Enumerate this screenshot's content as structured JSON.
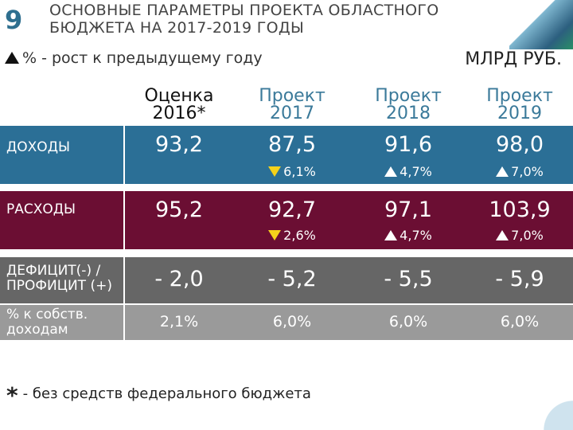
{
  "slide_number": "9",
  "title_line1": "ОСНОВНЫЕ ПАРАМЕТРЫ ПРОЕКТА ОБЛАСТНОГО",
  "title_line2": "БЮДЖЕТА НА 2017-2019 ГОДЫ",
  "legend_text": "% - рост к предыдущему году",
  "units": "МЛРД РУБ.",
  "columns": [
    {
      "line1": "Оценка",
      "line2": "2016*"
    },
    {
      "line1": "Проект",
      "line2": "2017"
    },
    {
      "line1": "Проект",
      "line2": "2018"
    },
    {
      "line1": "Проект",
      "line2": "2019"
    }
  ],
  "rows": {
    "income": {
      "label": "ДОХОДЫ",
      "values": [
        "93,2",
        "87,5",
        "91,6",
        "98,0"
      ],
      "changes": [
        "",
        "6,1%",
        "4,7%",
        "7,0%"
      ],
      "directions": [
        "",
        "down",
        "up",
        "up"
      ]
    },
    "expense": {
      "label": "РАСХОДЫ",
      "values": [
        "95,2",
        "92,7",
        "97,1",
        "103,9"
      ],
      "changes": [
        "",
        "2,6%",
        "4,7%",
        "7,0%"
      ],
      "directions": [
        "",
        "down",
        "up",
        "up"
      ]
    },
    "deficit": {
      "label_line1": "ДЕФИЦИТ(-) /",
      "label_line2": "ПРОФИЦИТ (+)",
      "values": [
        "- 2,0",
        "- 5,2",
        "- 5,5",
        "- 5,9"
      ]
    },
    "percent": {
      "label_line1": "% к собств.",
      "label_line2": "доходам",
      "values": [
        "2,1%",
        "6,0%",
        "6,0%",
        "6,0%"
      ]
    }
  },
  "footnote_mark": "*",
  "footnote_text": "- без средств федерального бюджета",
  "colors": {
    "income": "#2b6f96",
    "expense": "#6b0e33",
    "deficit": "#666666",
    "percent": "#9a9a9a",
    "down_arrow": "#f5d21b"
  }
}
